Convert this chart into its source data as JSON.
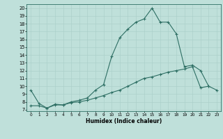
{
  "xlabel": "Humidex (Indice chaleur)",
  "line_color": "#2d6e63",
  "bg_color": "#bfe0da",
  "grid_color": "#a8cec8",
  "xlim": [
    -0.5,
    23.5
  ],
  "ylim": [
    6.8,
    20.5
  ],
  "yticks": [
    7,
    8,
    9,
    10,
    11,
    12,
    13,
    14,
    15,
    16,
    17,
    18,
    19,
    20
  ],
  "xticks": [
    0,
    1,
    2,
    3,
    4,
    5,
    6,
    7,
    8,
    9,
    10,
    11,
    12,
    13,
    14,
    15,
    16,
    17,
    18,
    19,
    20,
    21,
    22,
    23
  ],
  "line1_x": [
    0,
    1,
    2,
    3,
    4,
    5,
    6,
    7,
    8,
    9,
    10,
    11,
    12,
    13,
    14,
    15,
    16,
    17,
    18,
    19,
    20,
    21,
    22
  ],
  "line1_y": [
    9.5,
    7.8,
    7.2,
    7.7,
    7.6,
    8.0,
    8.2,
    8.5,
    9.5,
    10.2,
    13.8,
    16.2,
    17.3,
    18.2,
    18.6,
    20.0,
    18.2,
    18.2,
    16.7,
    12.5,
    12.7,
    12.0,
    10.0
  ],
  "line2_x": [
    0,
    1,
    2,
    3,
    4,
    5,
    6,
    7,
    8,
    9,
    10,
    11,
    12,
    13,
    14,
    15,
    16,
    17,
    18,
    19,
    20,
    21,
    22,
    23
  ],
  "line2_y": [
    7.5,
    7.5,
    7.2,
    7.6,
    7.6,
    7.9,
    8.0,
    8.2,
    8.5,
    8.8,
    9.2,
    9.5,
    10.0,
    10.5,
    11.0,
    11.2,
    11.5,
    11.8,
    12.0,
    12.2,
    12.5,
    9.8,
    10.0,
    9.5
  ]
}
